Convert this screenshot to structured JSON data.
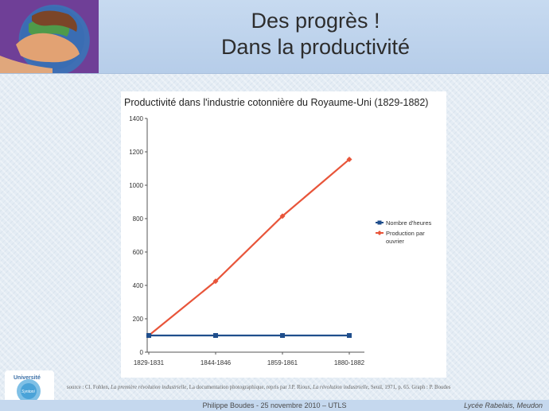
{
  "slide": {
    "title_line1": "Des progrès !",
    "title_line2": "Dans la productivité",
    "logo_text": "Université",
    "logo_subtext": "Syntoni",
    "source": {
      "prefix": "source : Cl. Fohlen, ",
      "book1": "La première révolution industrielle",
      "mid": ", La documentation photographique, repris par J.P. Rioux, ",
      "book2": "La révolution industrielle",
      "suffix": ", Seuil, 1971, p. 65. Graph : P. Boudes"
    },
    "footer_center": "Philippe Boudes  - 25 novembre 2010 – UTLS",
    "footer_right": "Lycée Rabelais, Meudon"
  },
  "chart_data": {
    "type": "line",
    "title": "Productivité dans l'industrie cotonnière du Royaume-Uni (1829-1882)",
    "categories": [
      "1829-1831",
      "1844-1846",
      "1859-1861",
      "1880-1882"
    ],
    "series": [
      {
        "name": "Nombre d'heures",
        "values": [
          100,
          100,
          100,
          100
        ],
        "color": "#1f4e8c",
        "marker": "square"
      },
      {
        "name": "Production par ouvrier",
        "values": [
          100,
          425,
          815,
          1155
        ],
        "color": "#e8553a",
        "marker": "diamond"
      }
    ],
    "ylim": [
      0,
      1400
    ],
    "yticks": [
      0,
      200,
      400,
      600,
      800,
      1000,
      1200,
      1400
    ],
    "xlabel": "",
    "ylabel": "",
    "grid": false,
    "legend": "right"
  }
}
